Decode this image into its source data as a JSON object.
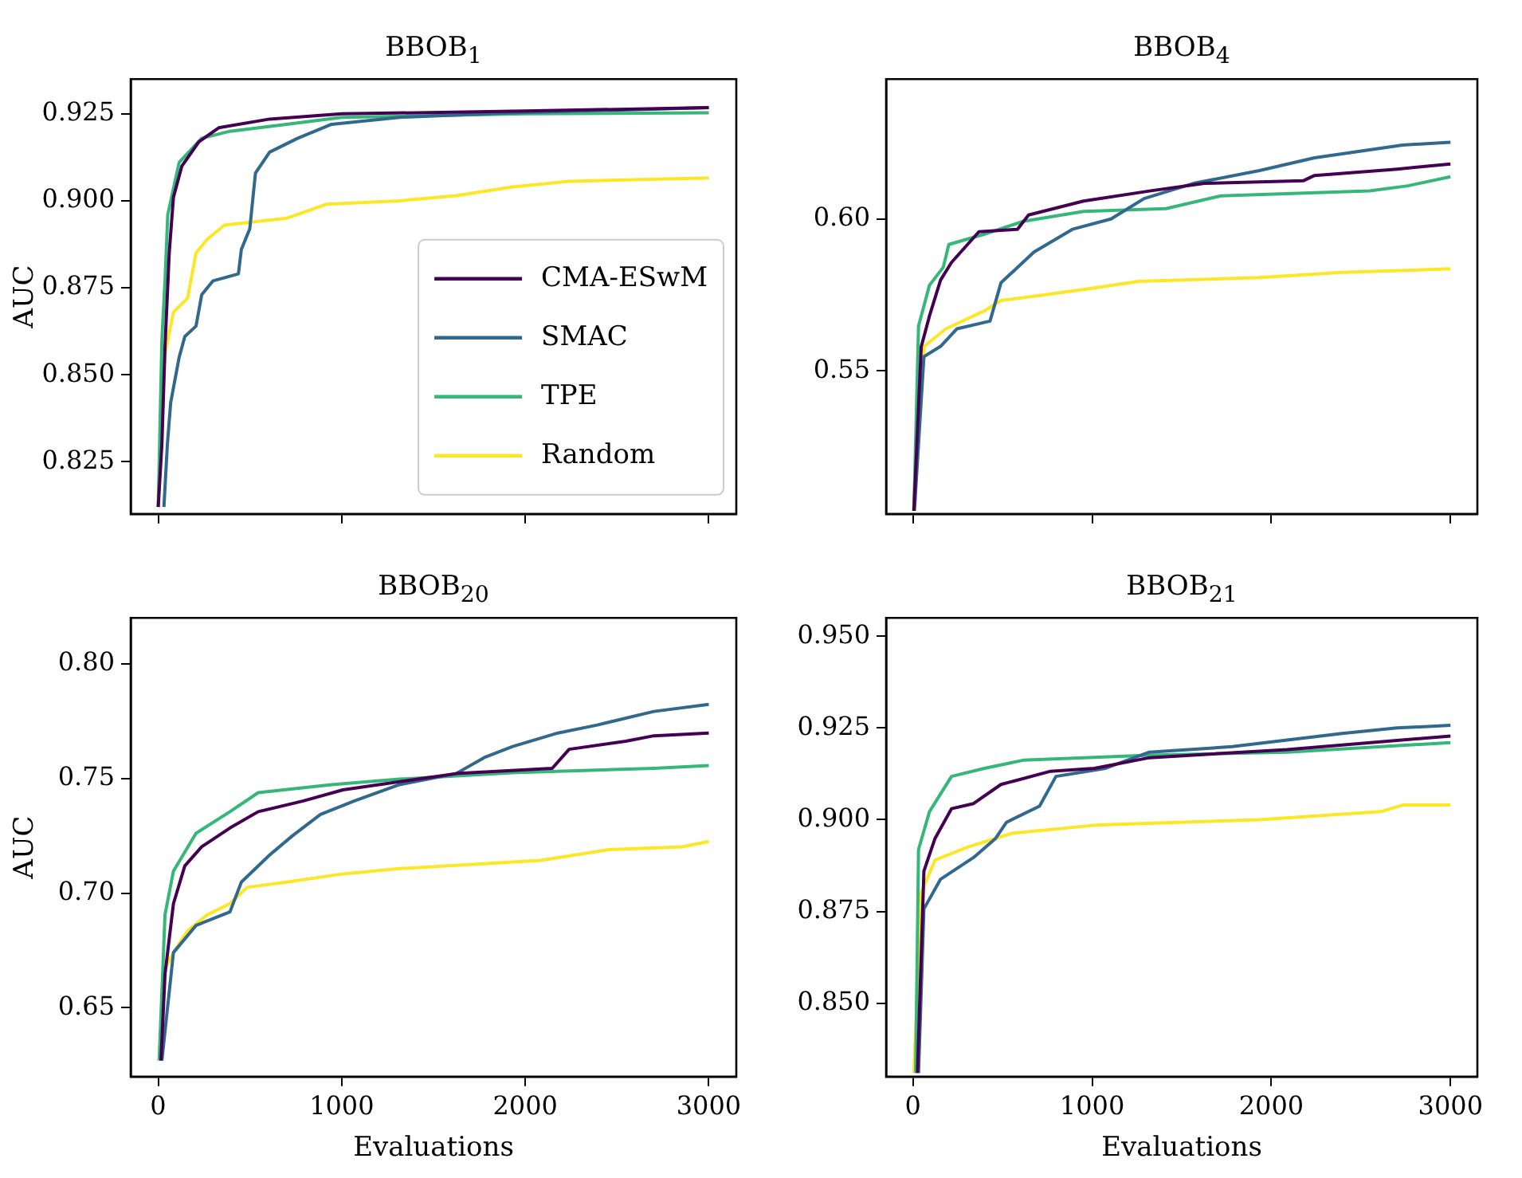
{
  "chart_data": [
    {
      "type": "line",
      "title": "BBOB$_{1}$",
      "ylabel": "AUC",
      "xlim": [
        -150,
        3150
      ],
      "ylim": [
        0.81,
        0.935
      ],
      "xticks": [
        0,
        1000,
        2000,
        3000
      ],
      "yticks": [
        0.825,
        {
          "value": 0.85,
          "label": "0.850"
        },
        0.875,
        {
          "value": 0.9,
          "label": "0.900"
        },
        0.925
      ],
      "tick_labels": "y",
      "legend": "bottom right",
      "series": [
        {
          "name": "CMA-ESwM",
          "color": "#440154",
          "x": [
            0,
            20,
            37,
            60,
            83,
            129,
            222,
            330,
            607,
            1000,
            2000,
            3000
          ],
          "values": [
            0.812,
            0.83,
            0.858,
            0.885,
            0.901,
            0.91,
            0.917,
            0.921,
            0.9235,
            0.925,
            0.9258,
            0.9268
          ]
        },
        {
          "name": "SMAC",
          "color": "#31688e",
          "x": [
            31,
            50,
            68,
            114,
            145,
            206,
            237,
            299,
            437,
            453,
            499,
            530,
            607,
            761,
            945,
            1315,
            1931,
            3000
          ],
          "values": [
            0.812,
            0.83,
            0.842,
            0.855,
            0.861,
            0.864,
            0.873,
            0.877,
            0.879,
            0.886,
            0.892,
            0.908,
            0.914,
            0.918,
            0.922,
            0.924,
            0.9253,
            0.9268
          ]
        },
        {
          "name": "TPE",
          "color": "#35b779",
          "x": [
            0,
            20,
            37,
            52,
            114,
            237,
            391,
            699,
            1000,
            2000,
            3000
          ],
          "values": [
            0.812,
            0.86,
            0.877,
            0.896,
            0.911,
            0.918,
            0.92,
            0.922,
            0.924,
            0.925,
            0.9253
          ]
        },
        {
          "name": "Random",
          "color": "#fde725",
          "x": [
            0,
            20,
            37,
            83,
            160,
            206,
            268,
            360,
            699,
            915,
            1315,
            1623,
            1931,
            2239,
            3000
          ],
          "values": [
            0.812,
            0.84,
            0.856,
            0.868,
            0.872,
            0.885,
            0.889,
            0.893,
            0.895,
            0.899,
            0.9,
            0.9015,
            0.904,
            0.9056,
            0.9066
          ]
        }
      ]
    },
    {
      "type": "line",
      "title": "BBOB$_{4}$",
      "xlim": [
        -150,
        3150
      ],
      "ylim": [
        0.503,
        0.646
      ],
      "xticks": [
        0,
        1000,
        2000,
        3000
      ],
      "yticks": [
        0.55,
        {
          "value": 0.6,
          "label": "0.60"
        }
      ],
      "tick_labels": "y",
      "series": [
        {
          "color": "#440154",
          "x": [
            5,
            46,
            92,
            154,
            215,
            368,
            583,
            645,
            952,
            1320,
            1627,
            2180,
            2241,
            2702,
            3000
          ],
          "values": [
            0.504,
            0.558,
            0.5681,
            0.5799,
            0.5857,
            0.5958,
            0.5966,
            0.6013,
            0.6059,
            0.6092,
            0.6117,
            0.6126,
            0.6143,
            0.6164,
            0.6181
          ]
        },
        {
          "color": "#31688e",
          "x": [
            8,
            61,
            154,
            246,
            430,
            491,
            675,
            890,
            1105,
            1290,
            1566,
            1934,
            2241,
            2733,
            3000
          ],
          "values": [
            0.504,
            0.5547,
            0.5581,
            0.5639,
            0.5664,
            0.579,
            0.5891,
            0.5966,
            0.6,
            0.6067,
            0.6117,
            0.6159,
            0.6201,
            0.6243,
            0.6252
          ]
        },
        {
          "color": "#35b779",
          "x": [
            5,
            31,
            92,
            169,
            200,
            399,
            614,
            952,
            1412,
            1719,
            2548,
            2763,
            3000
          ],
          "values": [
            0.504,
            0.5648,
            0.5782,
            0.5841,
            0.5916,
            0.595,
            0.5992,
            0.6025,
            0.6034,
            0.6076,
            0.6092,
            0.6109,
            0.6139
          ]
        },
        {
          "color": "#fde725",
          "x": [
            2,
            61,
            184,
            399,
            491,
            706,
            1013,
            1259,
            1934,
            2395,
            3000
          ],
          "values": [
            0.504,
            0.558,
            0.5639,
            0.5698,
            0.5732,
            0.5748,
            0.5773,
            0.5795,
            0.5807,
            0.5824,
            0.5836
          ]
        }
      ]
    },
    {
      "type": "line",
      "title": "BBOB$_{20}$",
      "xlabel": "Evaluations",
      "ylabel": "AUC",
      "xlim": [
        -150,
        3150
      ],
      "ylim": [
        0.62,
        0.82
      ],
      "xticks": [
        0,
        1000,
        2000,
        3000
      ],
      "yticks": [
        0.65,
        {
          "value": 0.7,
          "label": "0.70"
        },
        0.75,
        {
          "value": 0.8,
          "label": "0.80"
        }
      ],
      "series": [
        {
          "color": "#440154",
          "x": [
            15,
            37,
            83,
            145,
            237,
            391,
            545,
            791,
            1007,
            1623,
            2147,
            2239,
            2547,
            2701,
            3000
          ],
          "values": [
            0.627,
            0.6647,
            0.6954,
            0.7119,
            0.7202,
            0.7284,
            0.7355,
            0.7402,
            0.745,
            0.7521,
            0.7544,
            0.7627,
            0.7662,
            0.7686,
            0.7698
          ]
        },
        {
          "color": "#31688e",
          "x": [
            20,
            83,
            206,
            391,
            453,
            607,
            730,
            884,
            1069,
            1315,
            1623,
            1777,
            1931,
            2178,
            2393,
            2701,
            3000
          ],
          "values": [
            0.627,
            0.6741,
            0.6859,
            0.6918,
            0.7048,
            0.7166,
            0.7249,
            0.7343,
            0.7402,
            0.7473,
            0.7521,
            0.7591,
            0.7639,
            0.7698,
            0.7733,
            0.7792,
            0.7823
          ]
        },
        {
          "color": "#35b779",
          "x": [
            5,
            37,
            83,
            206,
            391,
            545,
            945,
            1315,
            1931,
            2701,
            3000
          ],
          "values": [
            0.627,
            0.6906,
            0.7096,
            0.7261,
            0.7355,
            0.7438,
            0.7473,
            0.7497,
            0.7525,
            0.7544,
            0.7556
          ]
        },
        {
          "color": "#fde725",
          "x": [
            5,
            37,
            83,
            160,
            268,
            391,
            484,
            699,
            1007,
            1315,
            2085,
            2455,
            2855,
            3000
          ],
          "values": [
            0.627,
            0.667,
            0.6741,
            0.6836,
            0.6906,
            0.6954,
            0.7025,
            0.7048,
            0.7084,
            0.7107,
            0.7143,
            0.719,
            0.7202,
            0.7225
          ]
        }
      ]
    },
    {
      "type": "line",
      "title": "BBOB$_{21}$",
      "xlabel": "Evaluations",
      "xlim": [
        -150,
        3150
      ],
      "ylim": [
        0.83,
        0.955
      ],
      "xticks": [
        0,
        1000,
        2000,
        3000
      ],
      "yticks": [
        {
          "value": 0.85,
          "label": "0.850"
        },
        0.875,
        {
          "value": 0.9,
          "label": "0.900"
        },
        0.925,
        {
          "value": 0.95,
          "label": "0.950"
        }
      ],
      "series": [
        {
          "color": "#440154",
          "x": [
            25,
            61,
            123,
            215,
            338,
            491,
            768,
            1013,
            1320,
            2088,
            3000
          ],
          "values": [
            0.831,
            0.886,
            0.8949,
            0.903,
            0.9044,
            0.9096,
            0.9132,
            0.914,
            0.9169,
            0.9191,
            0.9228
          ]
        },
        {
          "color": "#31688e",
          "x": [
            31,
            61,
            154,
            338,
            461,
            522,
            706,
            798,
            1075,
            1320,
            1781,
            2395,
            2702,
            3000
          ],
          "values": [
            0.831,
            0.8757,
            0.8838,
            0.8897,
            0.8949,
            0.8993,
            0.9037,
            0.9118,
            0.914,
            0.9184,
            0.9199,
            0.9235,
            0.925,
            0.9257
          ]
        },
        {
          "color": "#35b779",
          "x": [
            15,
            31,
            92,
            215,
            399,
            614,
            1320,
            2088,
            3000
          ],
          "values": [
            0.831,
            0.8919,
            0.9022,
            0.9118,
            0.914,
            0.9162,
            0.9176,
            0.9184,
            0.921
          ]
        },
        {
          "color": "#fde725",
          "x": [
            5,
            46,
            123,
            307,
            553,
            1013,
            1934,
            2610,
            2733,
            3000
          ],
          "values": [
            0.831,
            0.8801,
            0.889,
            0.8926,
            0.8963,
            0.8985,
            0.9,
            0.9022,
            0.904,
            0.904
          ]
        }
      ]
    }
  ]
}
